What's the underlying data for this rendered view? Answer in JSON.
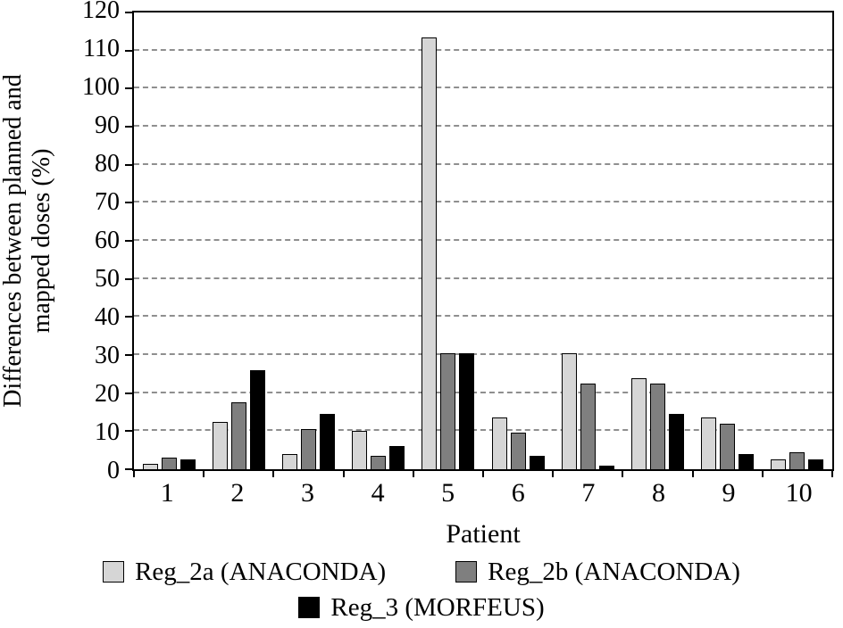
{
  "chart_data": {
    "type": "bar",
    "title": "",
    "xlabel": "Patient",
    "ylabel": "Differences between planned and mapped doses (%)",
    "ylabel_lines": [
      "Differences between planned and",
      "mapped doses (%)"
    ],
    "categories": [
      "1",
      "2",
      "3",
      "4",
      "5",
      "6",
      "7",
      "8",
      "9",
      "10"
    ],
    "series": [
      {
        "name": "Reg_2a (ANACONDA)",
        "color": "#d6d6d6",
        "values": [
          1.5,
          12.5,
          4,
          10,
          113.5,
          13.5,
          30.5,
          24,
          13.5,
          2.5
        ]
      },
      {
        "name": "Reg_2b (ANACONDA)",
        "color": "#7f7f7f",
        "values": [
          3,
          17.5,
          10.5,
          3.5,
          30.5,
          9.5,
          22.5,
          22.5,
          12,
          4.5
        ]
      },
      {
        "name": "Reg_3 (MORFEUS)",
        "color": "#000000",
        "values": [
          2.5,
          26,
          14.5,
          6,
          30.5,
          3.5,
          1,
          14.5,
          4,
          2.5
        ]
      }
    ],
    "ylim": [
      0,
      120
    ],
    "ytick_step": 10,
    "grid": "horizontal-dashed",
    "gridline_color": "#8f8f8f",
    "legend_position": "bottom",
    "legend_rows": [
      [
        0,
        1
      ],
      [
        2
      ]
    ]
  }
}
